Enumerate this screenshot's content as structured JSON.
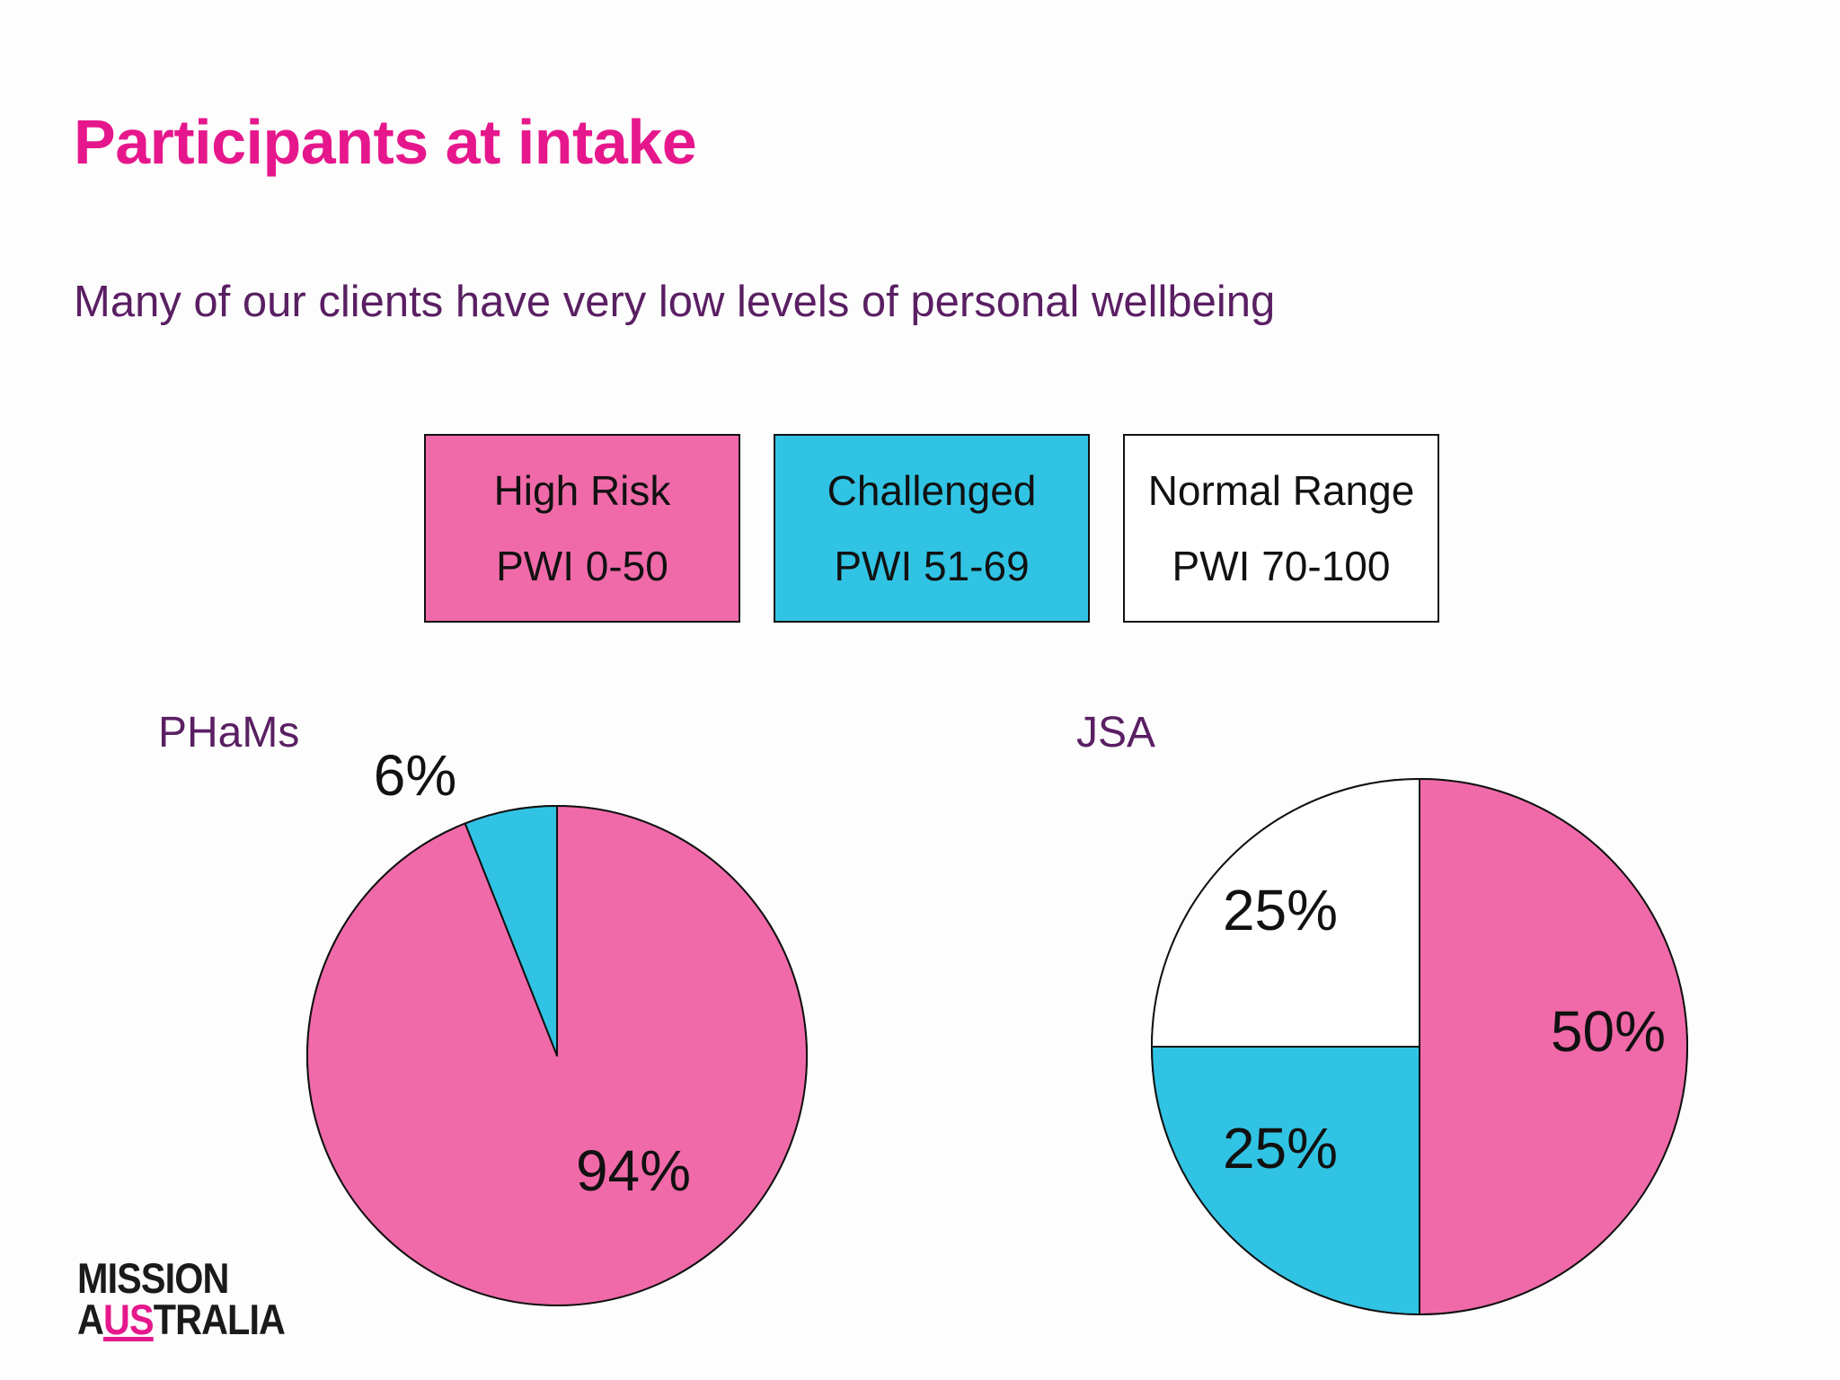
{
  "slide": {
    "title": "Participants at intake",
    "subtitle": "Many of our clients have very low levels of personal wellbeing"
  },
  "legend": [
    {
      "name": "High Risk",
      "range": "PWI 0-50",
      "color": "#f06aa9"
    },
    {
      "name": "Challenged",
      "range": "PWI 51-69",
      "color": "#31c3e3"
    },
    {
      "name": "Normal Range",
      "range": "PWI 70-100",
      "color": "#ffffff"
    }
  ],
  "chart_data": [
    {
      "type": "pie",
      "title": "PHaMs",
      "categories": [
        "High Risk",
        "Challenged",
        "Normal Range"
      ],
      "values": [
        94,
        6,
        0
      ],
      "labels": [
        "94%",
        "6%",
        ""
      ],
      "colors": [
        "#f06aa9",
        "#31c3e3",
        "#ffffff"
      ]
    },
    {
      "type": "pie",
      "title": "JSA",
      "categories": [
        "High Risk",
        "Challenged",
        "Normal Range"
      ],
      "values": [
        50,
        25,
        25
      ],
      "labels": [
        "50%",
        "25%",
        "25%"
      ],
      "colors": [
        "#f06aa9",
        "#31c3e3",
        "#ffffff"
      ]
    }
  ],
  "logo": {
    "line1": "MISSION",
    "line2_pre": "A",
    "line2_mid": "US",
    "line2_post": "TRALIA"
  }
}
